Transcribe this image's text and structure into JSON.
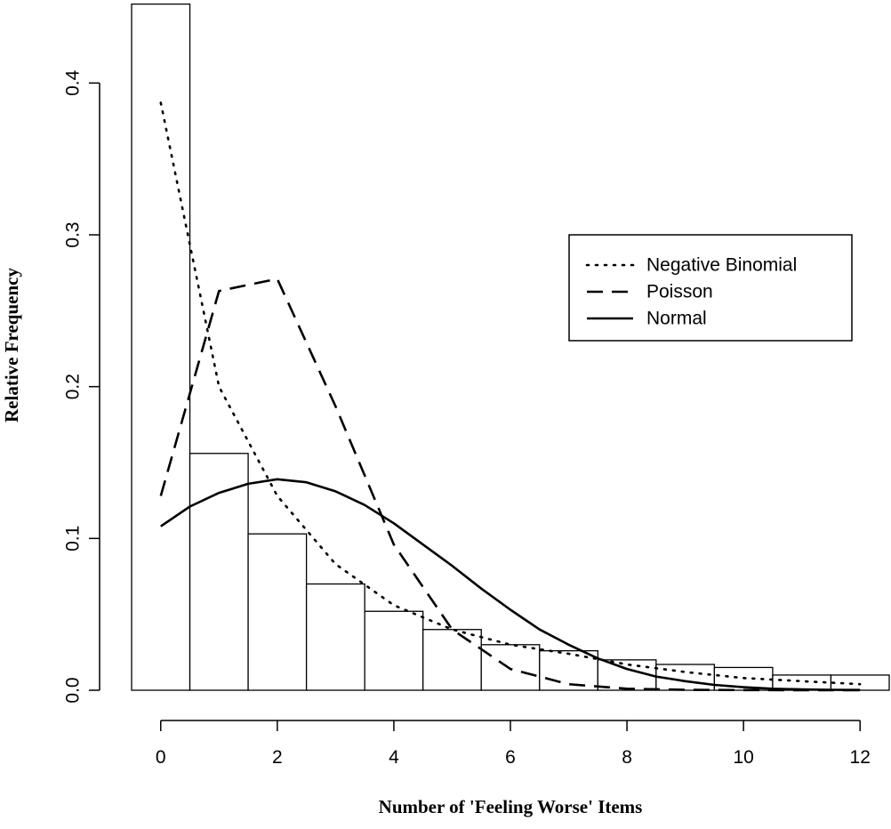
{
  "chart_data": {
    "type": "bar",
    "title": "",
    "xlabel": "Number of 'Feeling Worse' Items",
    "ylabel": "Relative Frequency",
    "xlim": [
      -0.5,
      12.5
    ],
    "ylim": [
      0.0,
      0.45
    ],
    "x_ticks": [
      0,
      2,
      4,
      6,
      8,
      10,
      12
    ],
    "x_tick_labels": [
      "0",
      "2",
      "4",
      "6",
      "8",
      "10",
      "12"
    ],
    "y_ticks": [
      0.0,
      0.1,
      0.2,
      0.3,
      0.4
    ],
    "y_tick_labels": [
      "0.0",
      "0.1",
      "0.2",
      "0.3",
      "0.4"
    ],
    "grid": false,
    "histogram": {
      "bin_centers": [
        0,
        1,
        2,
        3,
        4,
        5,
        6,
        7,
        8,
        9,
        10,
        11,
        12
      ],
      "values": [
        0.452,
        0.156,
        0.103,
        0.07,
        0.052,
        0.04,
        0.03,
        0.026,
        0.02,
        0.017,
        0.015,
        0.01,
        0.01
      ]
    },
    "series": [
      {
        "name": "Negative Binomial",
        "style": "dotted",
        "x": [
          0,
          1,
          2,
          3,
          4,
          5,
          6,
          7,
          8,
          9,
          10,
          11,
          12
        ],
        "values": [
          0.387,
          0.2,
          0.128,
          0.083,
          0.056,
          0.04,
          0.03,
          0.024,
          0.017,
          0.012,
          0.008,
          0.006,
          0.004
        ]
      },
      {
        "name": "Poisson",
        "style": "dashed",
        "x": [
          0,
          1,
          2,
          3,
          4,
          5,
          6,
          7,
          8,
          9,
          10,
          11,
          12
        ],
        "values": [
          0.128,
          0.263,
          0.271,
          0.187,
          0.096,
          0.04,
          0.014,
          0.004,
          0.001,
          0.0003,
          0.0001,
          0.0,
          0.0
        ]
      },
      {
        "name": "Normal",
        "style": "solid",
        "x": [
          0,
          0.5,
          1,
          1.5,
          2,
          2.5,
          3,
          3.5,
          4,
          4.5,
          5,
          5.5,
          6,
          6.5,
          7,
          7.5,
          8,
          8.5,
          9,
          9.5,
          10,
          10.5,
          11,
          11.5,
          12
        ],
        "values": [
          0.108,
          0.121,
          0.13,
          0.136,
          0.139,
          0.137,
          0.131,
          0.122,
          0.11,
          0.096,
          0.082,
          0.067,
          0.053,
          0.04,
          0.03,
          0.021,
          0.014,
          0.009,
          0.006,
          0.0035,
          0.002,
          0.001,
          0.0006,
          0.0003,
          0.0002
        ]
      }
    ],
    "legend": {
      "position": "top-right",
      "entries": [
        "Negative Binomial",
        "Poisson",
        "Normal"
      ]
    }
  }
}
